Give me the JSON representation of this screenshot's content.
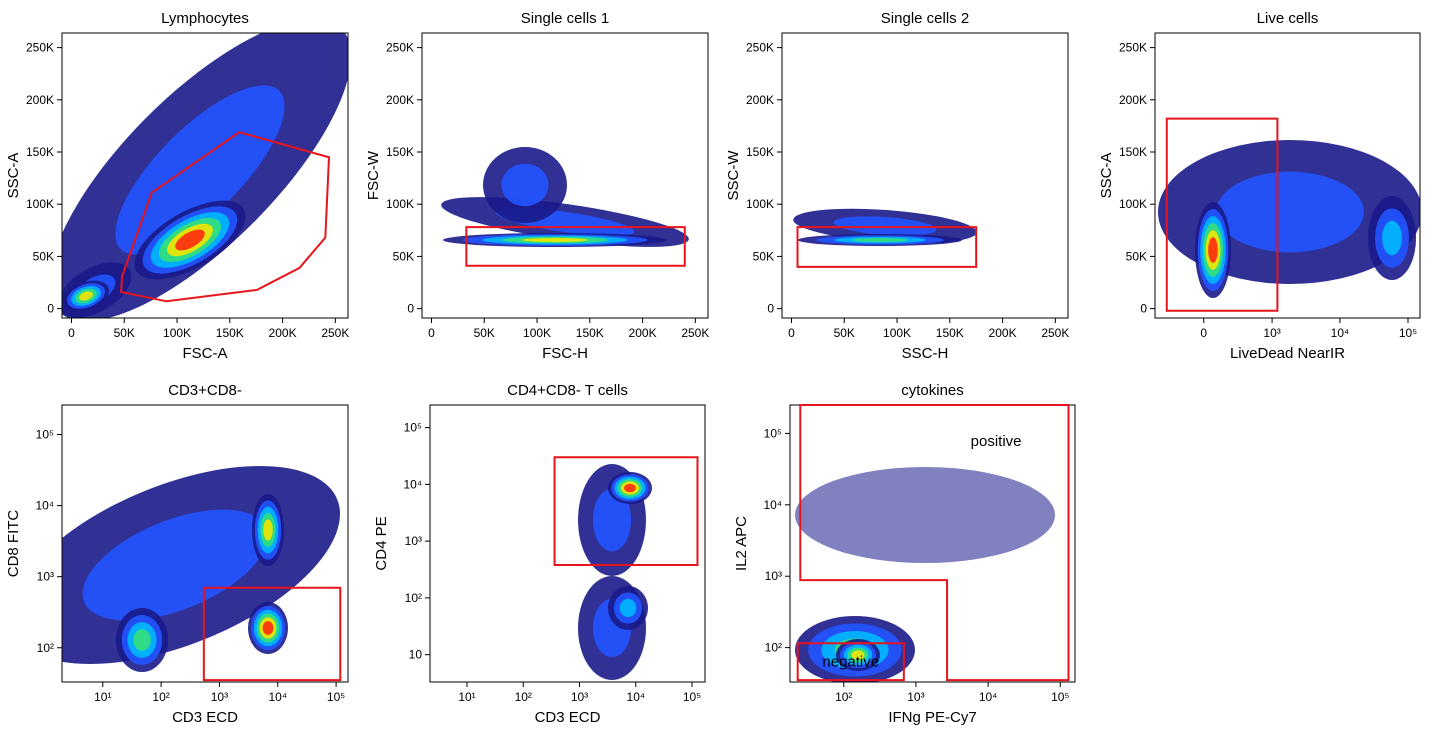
{
  "chart_data": [
    {
      "type": "density",
      "title": "Lymphocytes",
      "x_label": "FSC-A",
      "y_label": "SSC-A",
      "x_scale": "linear",
      "y_scale": "linear",
      "xlim": [
        -9000,
        262000
      ],
      "ylim": [
        -9000,
        264000
      ],
      "xticks": [
        0,
        {
          "value": 50000,
          "label": "50K"
        },
        {
          "value": 100000,
          "label": "100K"
        },
        {
          "value": 150000,
          "label": "150K"
        },
        {
          "value": 200000,
          "label": "200K"
        },
        {
          "value": 250000,
          "label": "250K"
        }
      ],
      "yticks": [
        0,
        {
          "value": 50000,
          "label": "50K"
        },
        {
          "value": 100000,
          "label": "100K"
        },
        {
          "value": 150000,
          "label": "150K"
        },
        {
          "value": 200000,
          "label": "200K"
        },
        {
          "value": 250000,
          "label": "250K"
        }
      ],
      "gates": [
        {
          "shape": "polygon",
          "color": "#e8141c",
          "x": [
            48000,
            76000,
            159000,
            244000,
            240500,
            216000,
            176000,
            90000,
            47000
          ],
          "y": [
            31000,
            111000,
            169000,
            145000,
            68000,
            39000,
            18000,
            7000,
            16000
          ]
        }
      ]
    },
    {
      "type": "density",
      "title": "Single cells 1",
      "x_label": "FSC-H",
      "y_label": "FSC-W",
      "x_scale": "linear",
      "y_scale": "linear",
      "xlim": [
        -9000,
        262000
      ],
      "ylim": [
        -9000,
        264000
      ],
      "xticks": [
        0,
        {
          "value": 50000,
          "label": "50K"
        },
        {
          "value": 100000,
          "label": "100K"
        },
        {
          "value": 150000,
          "label": "150K"
        },
        {
          "value": 200000,
          "label": "200K"
        },
        {
          "value": 250000,
          "label": "250K"
        }
      ],
      "yticks": [
        0,
        {
          "value": 50000,
          "label": "50K"
        },
        {
          "value": 100000,
          "label": "100K"
        },
        {
          "value": 150000,
          "label": "150K"
        },
        {
          "value": 200000,
          "label": "200K"
        },
        {
          "value": 250000,
          "label": "250K"
        }
      ],
      "gates": [
        {
          "shape": "rect",
          "color": "#e8141c",
          "x": [
            33000,
            240000
          ],
          "y": [
            41000,
            78000
          ]
        }
      ]
    },
    {
      "type": "density",
      "title": "Single cells 2",
      "x_label": "SSC-H",
      "y_label": "SSC-W",
      "x_scale": "linear",
      "y_scale": "linear",
      "xlim": [
        -9000,
        262000
      ],
      "ylim": [
        -9000,
        264000
      ],
      "xticks": [
        0,
        {
          "value": 50000,
          "label": "50K"
        },
        {
          "value": 100000,
          "label": "100K"
        },
        {
          "value": 150000,
          "label": "150K"
        },
        {
          "value": 200000,
          "label": "200K"
        },
        {
          "value": 250000,
          "label": "250K"
        }
      ],
      "yticks": [
        0,
        {
          "value": 50000,
          "label": "50K"
        },
        {
          "value": 100000,
          "label": "100K"
        },
        {
          "value": 150000,
          "label": "150K"
        },
        {
          "value": 200000,
          "label": "200K"
        },
        {
          "value": 250000,
          "label": "250K"
        }
      ],
      "gates": [
        {
          "shape": "rect",
          "color": "#e8141c",
          "x": [
            5700,
            175000
          ],
          "y": [
            40000,
            78000
          ]
        }
      ]
    },
    {
      "type": "density",
      "title": "Live cells",
      "x_label": "LiveDead NearIR",
      "y_label": "SSC-A",
      "x_scale": "biexponential",
      "y_scale": "linear",
      "xlim": [
        -500,
        150000
      ],
      "ylim": [
        -9000,
        264000
      ],
      "xticks": [
        0,
        {
          "value": 1000,
          "label": "10³"
        },
        {
          "value": 10000,
          "label": "10⁴"
        },
        {
          "value": 100000,
          "label": "10⁵"
        }
      ],
      "yticks": [
        0,
        {
          "value": 50000,
          "label": "50K"
        },
        {
          "value": 100000,
          "label": "100K"
        },
        {
          "value": 150000,
          "label": "150K"
        },
        {
          "value": 200000,
          "label": "200K"
        },
        {
          "value": 250000,
          "label": "250K"
        }
      ],
      "gates": [
        {
          "shape": "rect",
          "color": "#e8141c",
          "x": [
            -320,
            1200
          ],
          "y": [
            -2000,
            182000
          ]
        }
      ]
    },
    {
      "type": "density",
      "title": "CD3+CD8-",
      "x_label": "CD3 ECD",
      "y_label": "CD8 FITC",
      "x_scale": "log",
      "y_scale": "log",
      "xlim": [
        2,
        160000
      ],
      "ylim": [
        33,
        260000
      ],
      "xticks": [
        {
          "value": 10,
          "label": "10¹"
        },
        {
          "value": 100,
          "label": "10²"
        },
        {
          "value": 1000,
          "label": "10³"
        },
        {
          "value": 10000,
          "label": "10⁴"
        },
        {
          "value": 100000,
          "label": "10⁵"
        }
      ],
      "yticks": [
        {
          "value": 100,
          "label": "10²"
        },
        {
          "value": 1000,
          "label": "10³"
        },
        {
          "value": 10000,
          "label": "10⁴"
        },
        {
          "value": 100000,
          "label": "10⁵"
        }
      ],
      "gates": [
        {
          "shape": "rect",
          "color": "#e8141c",
          "x": [
            540,
            118000
          ],
          "y": [
            35,
            700
          ]
        }
      ]
    },
    {
      "type": "density",
      "title": "CD4+CD8- T cells",
      "x_label": "CD3 ECD",
      "y_label": "CD4 PE",
      "x_scale": "log",
      "y_scale": "log",
      "xlim": [
        2.2,
        170000
      ],
      "ylim": [
        3.3,
        250000
      ],
      "xticks": [
        {
          "value": 10,
          "label": "10¹"
        },
        {
          "value": 100,
          "label": "10²"
        },
        {
          "value": 1000,
          "label": "10³"
        },
        {
          "value": 10000,
          "label": "10⁴"
        },
        {
          "value": 100000,
          "label": "10⁵"
        }
      ],
      "yticks": [
        10,
        {
          "value": 100,
          "label": "10²"
        },
        {
          "value": 1000,
          "label": "10³"
        },
        {
          "value": 10000,
          "label": "10⁴"
        },
        {
          "value": 100000,
          "label": "10⁵"
        }
      ],
      "gates": [
        {
          "shape": "rect",
          "color": "#e8141c",
          "x": [
            360,
            125000
          ],
          "y": [
            380,
            30000
          ]
        }
      ]
    },
    {
      "type": "density",
      "title": "cytokines",
      "x_label": "IFNg PE-Cy7",
      "y_label": "IL2 APC",
      "x_scale": "log",
      "y_scale": "log",
      "xlim": [
        18,
        160000
      ],
      "ylim": [
        33,
        250000
      ],
      "xticks": [
        {
          "value": 100,
          "label": "10²"
        },
        {
          "value": 1000,
          "label": "10³"
        },
        {
          "value": 10000,
          "label": "10⁴"
        },
        {
          "value": 100000,
          "label": "10⁵"
        }
      ],
      "yticks": [
        {
          "value": 100,
          "label": "10²"
        },
        {
          "value": 1000,
          "label": "10³"
        },
        {
          "value": 10000,
          "label": "10⁴"
        },
        {
          "value": 100000,
          "label": "10⁵"
        }
      ],
      "gates": [
        {
          "shape": "polygon",
          "color": "#e8141c",
          "label": "positive",
          "x": [
            25,
            130000,
            130000,
            2700,
            2700,
            25
          ],
          "y": [
            250000,
            250000,
            35,
            35,
            880,
            880
          ]
        },
        {
          "shape": "rect",
          "color": "#e8141c",
          "label": "negative",
          "x": [
            23,
            680
          ],
          "y": [
            35,
            115
          ]
        }
      ]
    }
  ]
}
